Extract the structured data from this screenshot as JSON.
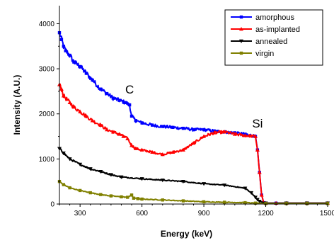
{
  "chart_data": {
    "type": "line",
    "title": "",
    "xlabel": "Energy (keV)",
    "ylabel": "Intensity (A.U.)",
    "xlim": [
      200,
      1500
    ],
    "ylim": [
      0,
      4400
    ],
    "xticks": [
      300,
      600,
      900,
      1200,
      1500
    ],
    "yticks": [
      0,
      1000,
      2000,
      3000,
      4000
    ],
    "grid": false,
    "legend_position": "top-right",
    "annotations": [
      {
        "text": "C",
        "x": 540,
        "y": 2450
      },
      {
        "text": "Si",
        "x": 1160,
        "y": 1700
      }
    ],
    "series": [
      {
        "name": "amorphous",
        "color": "#0000ff",
        "marker": "square",
        "x": [
          200,
          210,
          220,
          230,
          250,
          270,
          300,
          330,
          360,
          400,
          430,
          460,
          490,
          520,
          540,
          550,
          570,
          600,
          650,
          700,
          750,
          800,
          850,
          900,
          950,
          1000,
          1050,
          1100,
          1150,
          1160,
          1170,
          1180,
          1190,
          1200,
          1250,
          1300,
          1400,
          1500
        ],
        "y": [
          3800,
          3650,
          3500,
          3400,
          3300,
          3150,
          3050,
          2900,
          2750,
          2550,
          2450,
          2350,
          2300,
          2250,
          2200,
          1950,
          1850,
          1800,
          1750,
          1720,
          1700,
          1680,
          1650,
          1650,
          1620,
          1600,
          1580,
          1550,
          1500,
          1200,
          700,
          200,
          30,
          20,
          20,
          20,
          20,
          20
        ]
      },
      {
        "name": "as-implanted",
        "color": "#ff0000",
        "marker": "triangle",
        "x": [
          200,
          210,
          220,
          250,
          270,
          300,
          330,
          360,
          400,
          430,
          460,
          490,
          510,
          530,
          550,
          570,
          600,
          650,
          700,
          750,
          800,
          850,
          900,
          950,
          1000,
          1050,
          1100,
          1150,
          1160,
          1170,
          1180,
          1190,
          1200,
          1250,
          1300,
          1400,
          1500
        ],
        "y": [
          2650,
          2550,
          2400,
          2250,
          2150,
          2050,
          1950,
          1850,
          1750,
          1650,
          1600,
          1550,
          1500,
          1450,
          1300,
          1230,
          1200,
          1150,
          1100,
          1150,
          1200,
          1350,
          1500,
          1580,
          1600,
          1550,
          1520,
          1500,
          1200,
          700,
          200,
          30,
          20,
          20,
          20,
          20,
          20
        ]
      },
      {
        "name": "annealed",
        "color": "#000000",
        "marker": "triangle-down",
        "x": [
          200,
          220,
          250,
          300,
          350,
          400,
          450,
          500,
          600,
          700,
          800,
          900,
          1000,
          1100,
          1130,
          1150,
          1160,
          1170,
          1200,
          1300,
          1400,
          1500
        ],
        "y": [
          1230,
          1130,
          1000,
          880,
          780,
          720,
          650,
          600,
          560,
          530,
          500,
          450,
          420,
          350,
          250,
          150,
          100,
          60,
          20,
          20,
          20,
          20
        ]
      },
      {
        "name": "virgin",
        "color": "#808000",
        "marker": "square",
        "x": [
          200,
          220,
          250,
          300,
          350,
          400,
          450,
          500,
          530,
          550,
          560,
          580,
          600,
          700,
          800,
          900,
          1000,
          1100,
          1150,
          1200,
          1300,
          1400,
          1500
        ],
        "y": [
          500,
          430,
          360,
          300,
          250,
          210,
          180,
          160,
          150,
          200,
          130,
          120,
          110,
          90,
          70,
          50,
          40,
          30,
          20,
          10,
          10,
          10,
          10
        ]
      }
    ]
  }
}
